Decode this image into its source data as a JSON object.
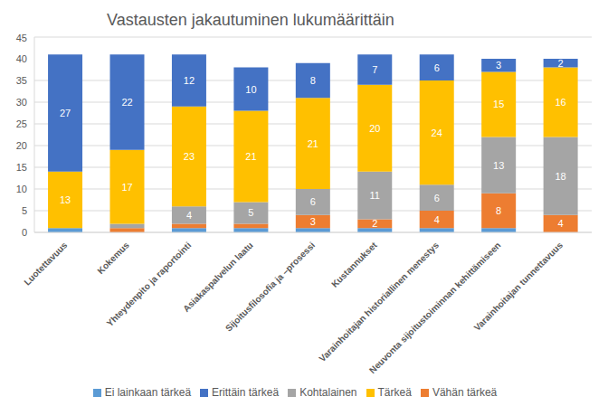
{
  "chart_data": {
    "type": "bar",
    "title": "Vastausten jakautuminen lukumäärittäin",
    "categories": [
      "Luotettavuus",
      "Kokemus",
      "Yhteydenpito ja raportointi",
      "Asiakaspalvelun laatu",
      "Sijoitusfilosofia ja –prosessi",
      "Kustannukset",
      "Varainhoitajan historiallinen menestys",
      "Neuvonta sijoitustoiminnan kehittämiseen",
      "Varainhoitajan tunnettavuus"
    ],
    "series": [
      {
        "name": "Ei lainkaan tärkeä",
        "color": "#5b9bd5",
        "values": [
          1,
          0,
          1,
          1,
          1,
          1,
          1,
          1,
          0
        ]
      },
      {
        "name": "Vähän tärkeä",
        "color": "#ed7d31",
        "values": [
          0,
          1,
          1,
          1,
          3,
          2,
          4,
          8,
          4
        ]
      },
      {
        "name": "Kohtalainen",
        "color": "#a5a5a5",
        "values": [
          0,
          1,
          4,
          5,
          6,
          11,
          6,
          13,
          18
        ]
      },
      {
        "name": "Tärkeä",
        "color": "#ffc000",
        "values": [
          13,
          17,
          23,
          21,
          21,
          20,
          24,
          15,
          16
        ]
      },
      {
        "name": "Erittäin tärkeä",
        "color": "#4472c4",
        "values": [
          27,
          22,
          12,
          10,
          8,
          7,
          6,
          3,
          2
        ]
      }
    ],
    "ylim": [
      0,
      45
    ],
    "yticks": [
      0,
      5,
      10,
      15,
      20,
      25,
      30,
      35,
      40,
      45
    ],
    "grid": true,
    "stacked": true,
    "data_labels": true,
    "legend": "bottom"
  }
}
